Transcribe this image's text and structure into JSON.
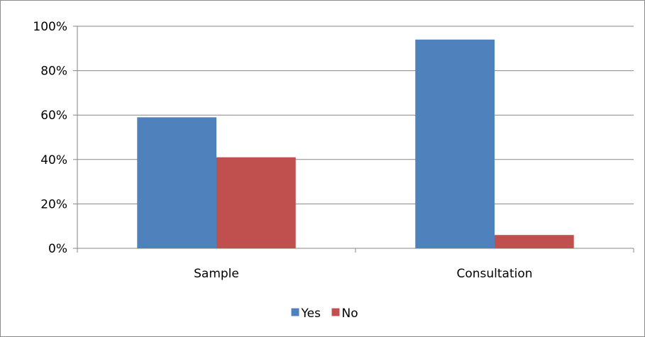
{
  "chart_data": {
    "type": "bar",
    "categories": [
      "Sample",
      "Consultation"
    ],
    "series": [
      {
        "name": "Yes",
        "values": [
          59,
          94
        ],
        "color": "#4f81bd"
      },
      {
        "name": "No",
        "values": [
          41,
          6
        ],
        "color": "#c0504d"
      }
    ],
    "ylim": [
      0,
      100
    ],
    "yticks": [
      0,
      20,
      40,
      60,
      80,
      100
    ],
    "ytick_labels": [
      "0%",
      "20%",
      "40%",
      "60%",
      "80%",
      "100%"
    ],
    "grid": true,
    "legend_position": "bottom"
  }
}
